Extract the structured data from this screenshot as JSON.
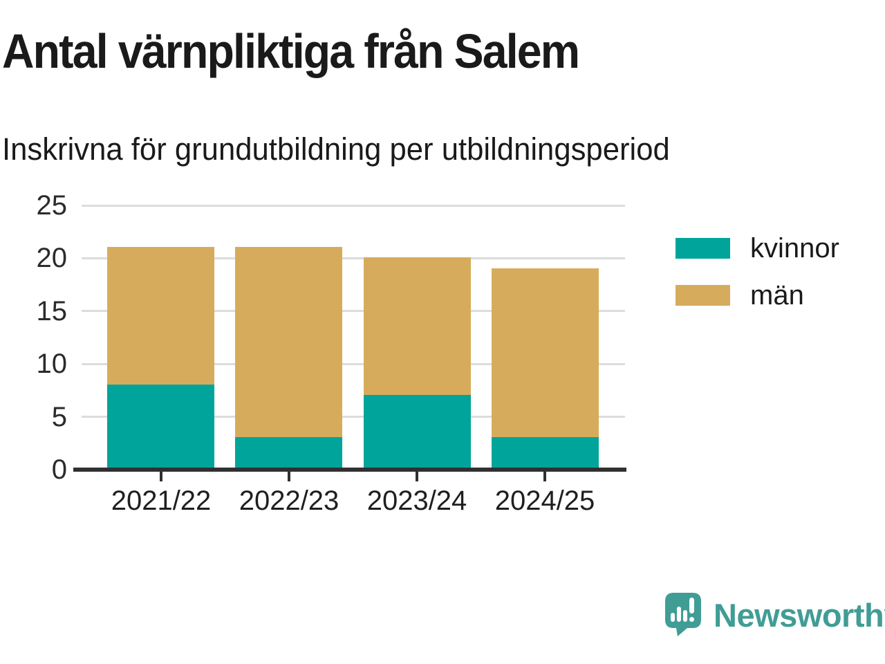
{
  "chart_data": {
    "type": "bar",
    "stacked": true,
    "title": "Antal värnpliktiga från Salem",
    "subtitle": "Inskrivna för grundutbildning per utbildningsperiod",
    "categories": [
      "2021/22",
      "2022/23",
      "2023/24",
      "2024/25"
    ],
    "series": [
      {
        "name": "kvinnor",
        "color": "#00A49A",
        "values": [
          8,
          3,
          7,
          3
        ]
      },
      {
        "name": "män",
        "color": "#D6AC5C",
        "values": [
          13,
          18,
          13,
          16
        ]
      }
    ],
    "totals": [
      21,
      21,
      20,
      19
    ],
    "xlabel": "",
    "ylabel": "",
    "ylim": [
      0,
      25
    ],
    "yticks": [
      0,
      5,
      10,
      15,
      20,
      25
    ],
    "grid": true,
    "legend_position": "right"
  },
  "branding": {
    "logo_text": "Newsworthy",
    "logo_color": "#409D95"
  },
  "colors": {
    "background": "#FFFFFF",
    "text": "#1A1A1A",
    "axis_labels": "#2B2B2B",
    "gridline": "#DCDCDC",
    "axis_line": "#303030"
  }
}
